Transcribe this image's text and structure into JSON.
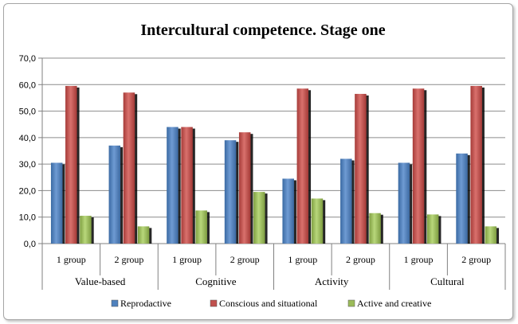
{
  "chart_data": {
    "type": "bar",
    "title": "Intercultural competence. Stage one",
    "xlabel": "",
    "ylabel": "",
    "ylim": [
      0,
      70
    ],
    "yticks": [
      "0,0",
      "10,0",
      "20,0",
      "30,0",
      "40,0",
      "50,0",
      "60,0",
      "70,0"
    ],
    "grid": true,
    "legend_position": "bottom",
    "groups": [
      {
        "name": "Value-based",
        "categories": [
          "1 group",
          "2 group"
        ]
      },
      {
        "name": "Cognitive",
        "categories": [
          "1 group",
          "2 group"
        ]
      },
      {
        "name": "Activity",
        "categories": [
          "1 group",
          "2 group"
        ]
      },
      {
        "name": "Cultural",
        "categories": [
          "1 group",
          "2 group"
        ]
      }
    ],
    "series": [
      {
        "name": "Reprodactive",
        "color": "#4f81bd",
        "values": [
          30.5,
          37.0,
          44.0,
          39.0,
          24.5,
          32.0,
          30.5,
          34.0
        ]
      },
      {
        "name": "Conscious and situational",
        "color": "#c0504d",
        "values": [
          59.5,
          57.0,
          44.0,
          42.0,
          58.5,
          56.5,
          58.5,
          59.5
        ]
      },
      {
        "name": "Active and creative",
        "color": "#9bbb59",
        "values": [
          10.5,
          6.5,
          12.5,
          19.5,
          17.0,
          11.5,
          11.0,
          6.5
        ]
      }
    ]
  }
}
